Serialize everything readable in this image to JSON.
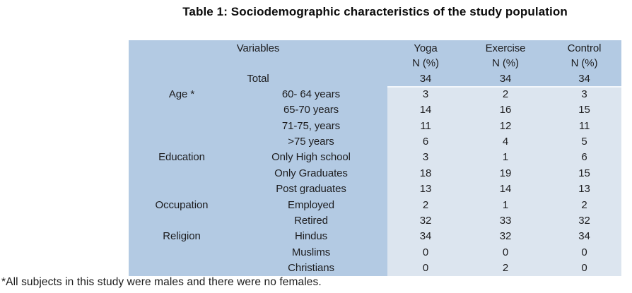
{
  "title": "Table 1: Sociodemographic characteristics of the study population",
  "footnote": "*All subjects in this study were males and there were no females.",
  "colors": {
    "table_header_bg": "#b3cae3",
    "values_panel_bg": "#dce5ef",
    "text": "#1d1d1f"
  },
  "table": {
    "columns": {
      "variables_label": "Variables",
      "groups": [
        {
          "label": "Yoga",
          "unit": "N (%)"
        },
        {
          "label": "Exercise",
          "unit": "N (%)"
        },
        {
          "label": "Control",
          "unit": "N (%)"
        }
      ]
    },
    "total_row": {
      "label": "Total",
      "values": [
        "34",
        "34",
        "34"
      ]
    },
    "rows": [
      {
        "category": "Age *",
        "subcategory": "60- 64 years",
        "values": [
          "3",
          "2",
          "3"
        ]
      },
      {
        "category": "",
        "subcategory": "65-70 years",
        "values": [
          "14",
          "16",
          "15"
        ]
      },
      {
        "category": "",
        "subcategory": "71-75, years",
        "values": [
          "11",
          "12",
          "11"
        ]
      },
      {
        "category": "",
        "subcategory": ">75 years",
        "values": [
          "6",
          "4",
          "5"
        ]
      },
      {
        "category": "Education",
        "subcategory": "Only High school",
        "values": [
          "3",
          "1",
          "6"
        ]
      },
      {
        "category": "",
        "subcategory": "Only Graduates",
        "values": [
          "18",
          "19",
          "15"
        ]
      },
      {
        "category": "",
        "subcategory": "Post graduates",
        "values": [
          "13",
          "14",
          "13"
        ]
      },
      {
        "category": "Occupation",
        "subcategory": "Employed",
        "values": [
          "2",
          "1",
          "2"
        ]
      },
      {
        "category": "",
        "subcategory": "Retired",
        "values": [
          "32",
          "33",
          "32"
        ]
      },
      {
        "category": "Religion",
        "subcategory": "Hindus",
        "values": [
          "34",
          "32",
          "34"
        ]
      },
      {
        "category": "",
        "subcategory": "Muslims",
        "values": [
          "0",
          "0",
          "0"
        ]
      },
      {
        "category": "",
        "subcategory": "Christians",
        "values": [
          "0",
          "2",
          "0"
        ]
      }
    ]
  }
}
